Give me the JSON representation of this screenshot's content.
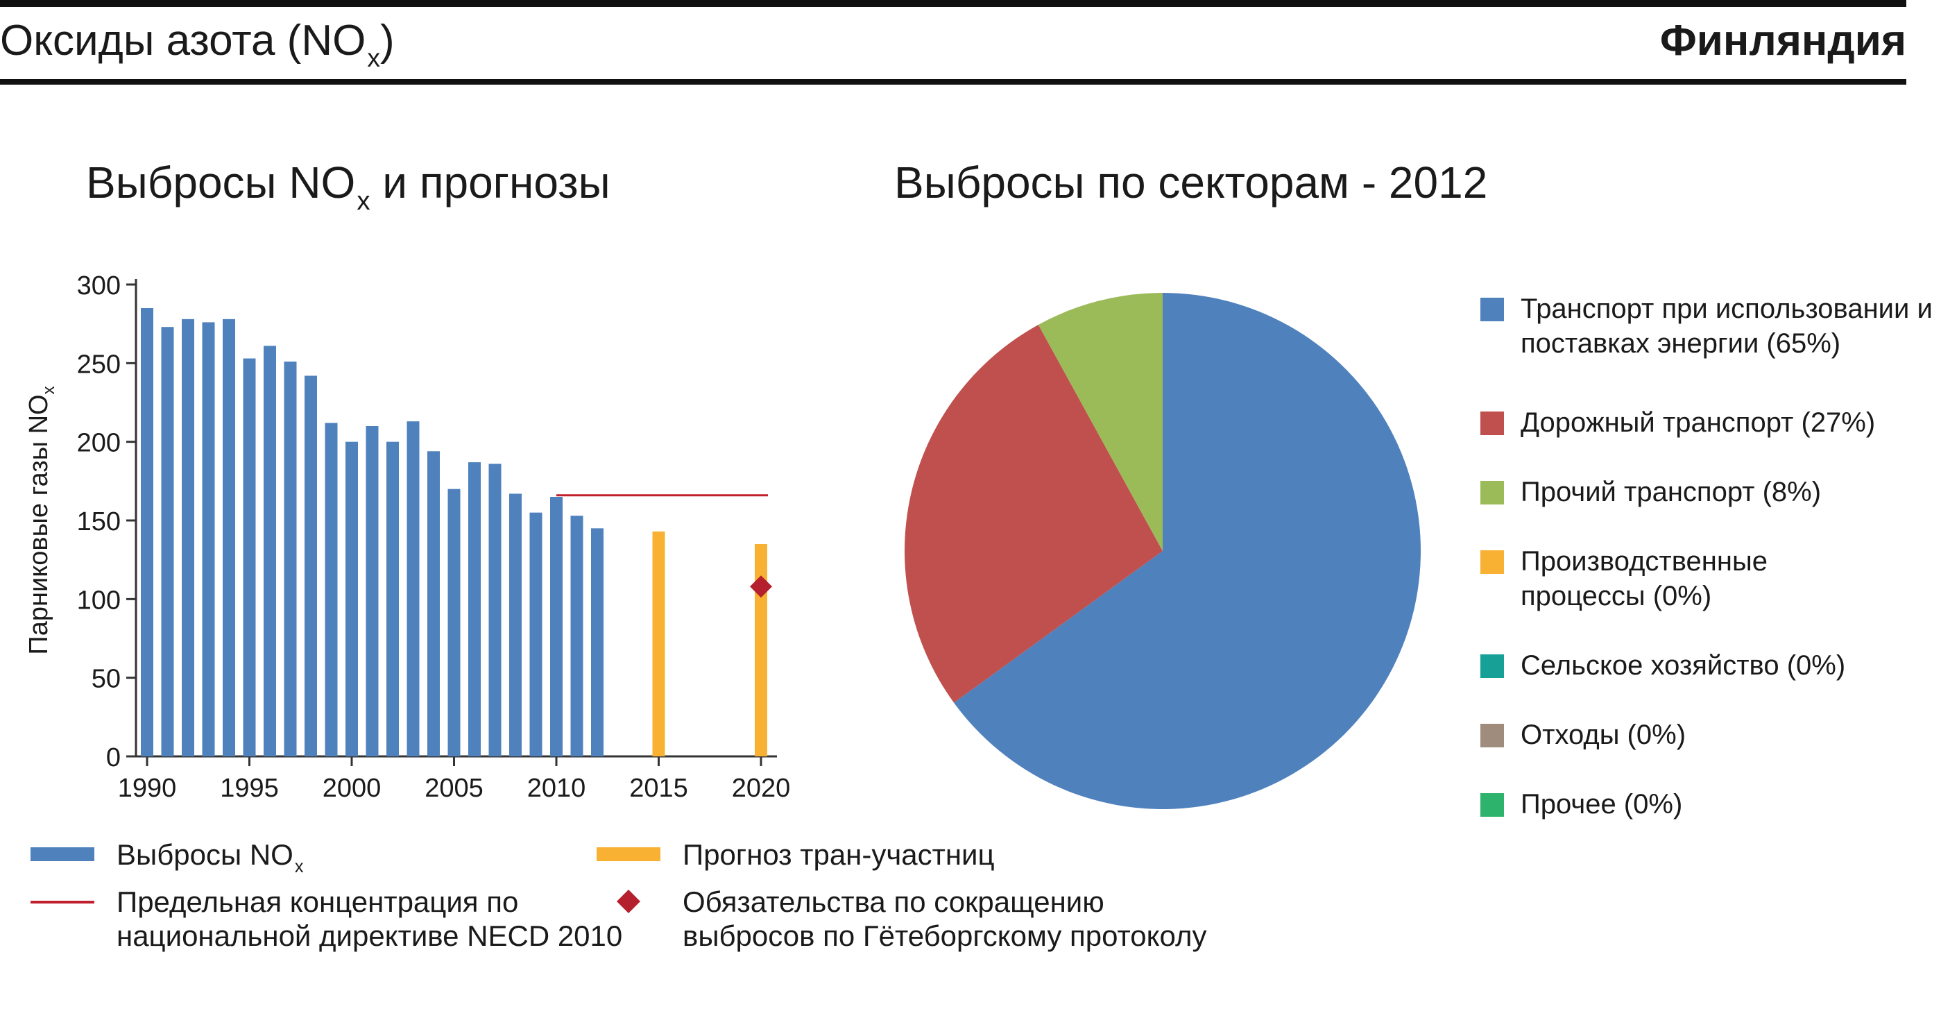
{
  "header": {
    "title_prefix": "Оксиды азота (NO",
    "title_sub": "x",
    "title_suffix": ")",
    "country": "Финляндия"
  },
  "left_chart": {
    "title_prefix": "Выбросы NO",
    "title_sub": "x",
    "title_suffix": " и прогнозы",
    "ylabel_prefix": "Парниковые газы NO",
    "ylabel_sub": "x"
  },
  "right_chart": {
    "title": "Выбросы по секторам - 2012"
  },
  "legend_bottom": {
    "emissions_prefix": "Выбросы NO",
    "emissions_sub": "x",
    "projection": "Прогноз тран-участниц",
    "limit": "Предельная концентрация по\nнациональной директиве NECD 2010",
    "commitment": "Обязательства по сокращению\nвыбросов по Гётеборгскому протоколу"
  },
  "chart_data": [
    {
      "type": "bar",
      "title": "Выбросы NOx и прогнозы",
      "ylabel": "Парниковые газы NOx",
      "ylim": [
        0,
        300
      ],
      "yticks": [
        0,
        50,
        100,
        150,
        200,
        250,
        300
      ],
      "xticks": [
        1990,
        1995,
        2000,
        2005,
        2010,
        2015,
        2020
      ],
      "xlim": [
        1990,
        2021
      ],
      "series": [
        {
          "name": "Выбросы NOx",
          "color": "#4f81bd",
          "x": [
            1990,
            1991,
            1992,
            1993,
            1994,
            1995,
            1996,
            1997,
            1998,
            1999,
            2000,
            2001,
            2002,
            2003,
            2004,
            2005,
            2006,
            2007,
            2008,
            2009,
            2010,
            2011,
            2012
          ],
          "values": [
            285,
            273,
            278,
            276,
            278,
            253,
            261,
            251,
            242,
            212,
            200,
            210,
            200,
            213,
            194,
            170,
            187,
            186,
            167,
            155,
            165,
            153,
            145
          ]
        },
        {
          "name": "Прогноз тран-участниц",
          "color": "#f8b133",
          "x": [
            2015,
            2020
          ],
          "values": [
            143,
            135
          ]
        }
      ],
      "limit_line": {
        "name": "Предельная концентрация по национальной директиве NECD 2010",
        "color": "#c01f2c",
        "value": 166,
        "x_range": [
          2010,
          2020
        ]
      },
      "commitment_point": {
        "name": "Обязательства по сокращению выбросов по Гётеборгскому протоколу",
        "color": "#b5202e",
        "x": 2020,
        "value": 108
      }
    },
    {
      "type": "pie",
      "title": "Выбросы по секторам - 2012",
      "slices": [
        {
          "label": "Транспорт при использовании и\nпоставках энергии (65%)",
          "value": 65,
          "color": "#4f81bd"
        },
        {
          "label": "Дорожный транспорт (27%)",
          "value": 27,
          "color": "#c0504d"
        },
        {
          "label": "Прочий транспорт (8%)",
          "value": 8,
          "color": "#9bbb59"
        },
        {
          "label": "Производственные\nпроцессы (0%)",
          "value": 0,
          "color": "#f8b133"
        },
        {
          "label": "Сельское хозяйство (0%)",
          "value": 0,
          "color": "#16a096"
        },
        {
          "label": "Отходы (0%)",
          "value": 0,
          "color": "#a08c7d"
        },
        {
          "label": "Прочее (0%)",
          "value": 0,
          "color": "#2db36b"
        }
      ],
      "legend_position": "right"
    }
  ]
}
